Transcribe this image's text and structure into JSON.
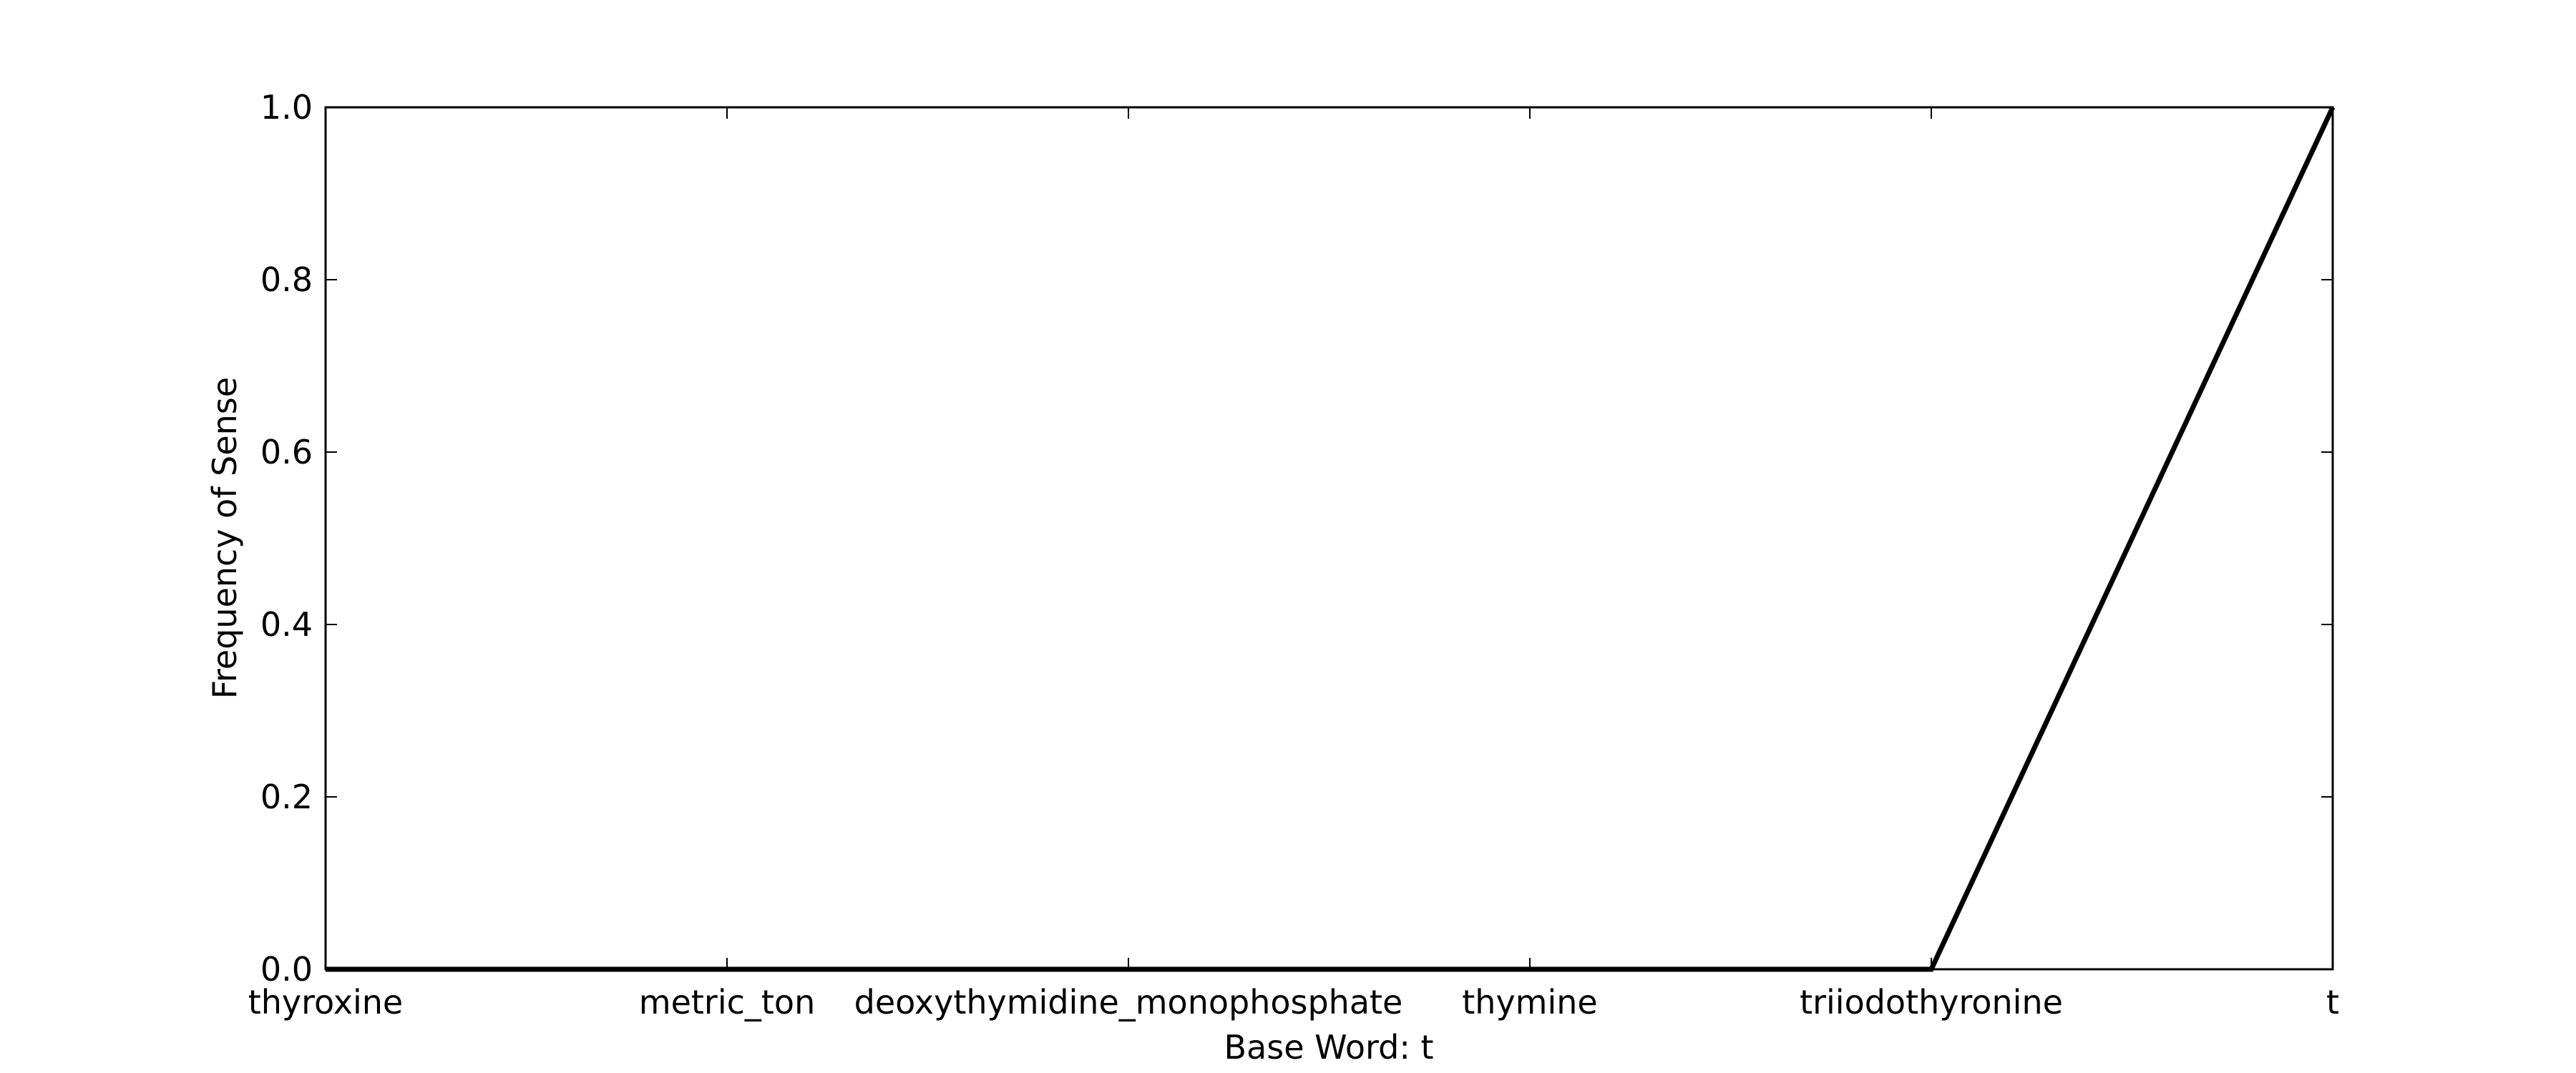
{
  "chart_data": {
    "type": "line",
    "title": "",
    "xlabel": "Base Word: t",
    "ylabel": "Frequency of Sense",
    "categories": [
      "thyroxine",
      "metric_ton",
      "deoxythymidine_monophosphate",
      "thymine",
      "triiodothyronine",
      "t"
    ],
    "series": [
      {
        "values": [
          0.0,
          0.0,
          0.0,
          0.0,
          0.0,
          1.0
        ]
      }
    ],
    "ylim": [
      0.0,
      1.0
    ],
    "yticks": [
      "0.0",
      "0.2",
      "0.4",
      "0.6",
      "0.8",
      "1.0"
    ],
    "grid": false,
    "legend": "none",
    "colors": {
      "line": "#000000",
      "axes": "#000000",
      "background": "#ffffff"
    }
  }
}
